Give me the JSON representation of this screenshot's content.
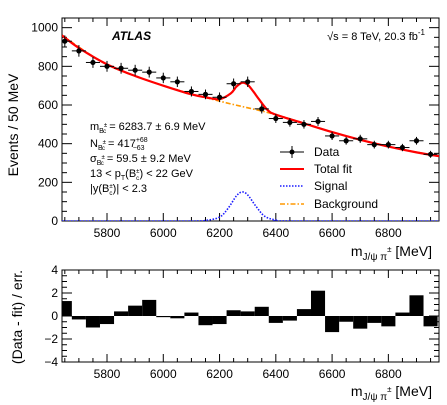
{
  "chart_data": [
    {
      "type": "line",
      "xlabel_main": "m",
      "xlabel_sub": "J/ψ π",
      "xlabel_sup": "±",
      "xlabel_unit": " [MeV]",
      "ylabel": "Events / 50 MeV",
      "xlim": [
        5640,
        6980
      ],
      "ylim": [
        0,
        1050
      ],
      "xticks": [
        5800,
        6000,
        6200,
        6400,
        6600,
        6800
      ],
      "xtick_labels": [
        "5800",
        "6000",
        "6200",
        "6400",
        "6600",
        "6800"
      ],
      "yticks": [
        0,
        200,
        400,
        600,
        800,
        1000
      ],
      "ytick_labels": [
        "0",
        "200",
        "400",
        "600",
        "800",
        "1000"
      ],
      "experiment": "ATLAS",
      "energy_label": "√s = 8 TeV, 20.3 fb",
      "energy_sup": "-1",
      "fit_results": [
        {
          "main": "m",
          "sub": "B",
          "subsup": "±",
          "subsub": "c",
          "rest": " = 6283.7 ± 6.9 MeV"
        },
        {
          "main": "N",
          "sub": "B",
          "subsup": "±",
          "subsub": "c",
          "rest": " = 417",
          "up": "+68",
          "down": "−63"
        },
        {
          "main": "σ",
          "sub": "B",
          "subsup": "±",
          "subsub": "c",
          "rest": " = 59.5 ± 9.2 MeV"
        }
      ],
      "cut_pt": {
        "pre": "13 < p",
        "sub": "T",
        "mid": "(B",
        "sub2": "c",
        "sup2": "±",
        "post": ") < 22 GeV"
      },
      "cut_y": {
        "pre": "|y(B",
        "sub": "c",
        "sup": "±",
        "post": ")| < 2.3"
      },
      "legend": [
        {
          "label": "Data",
          "style": "data"
        },
        {
          "label": "Total fit",
          "style": "total"
        },
        {
          "label": "Signal",
          "style": "signal"
        },
        {
          "label": "Background",
          "style": "background"
        }
      ],
      "colors": {
        "total_fit": "#ff0000",
        "signal": "#1a1aff",
        "background": "#ff9900",
        "data": "#000000"
      },
      "series": [
        {
          "name": "Data",
          "x": [
            5650,
            5700,
            5750,
            5800,
            5850,
            5900,
            5950,
            6000,
            6050,
            6100,
            6150,
            6200,
            6250,
            6300,
            6350,
            6400,
            6450,
            6500,
            6550,
            6600,
            6650,
            6700,
            6750,
            6800,
            6850,
            6900,
            6950
          ],
          "y": [
            930,
            880,
            820,
            800,
            790,
            780,
            770,
            740,
            720,
            670,
            655,
            640,
            710,
            720,
            580,
            530,
            510,
            500,
            515,
            440,
            415,
            425,
            395,
            395,
            380,
            415,
            345
          ],
          "err": [
            30,
            30,
            28,
            28,
            28,
            28,
            28,
            27,
            27,
            26,
            25,
            25,
            27,
            27,
            24,
            23,
            22,
            22,
            23,
            21,
            20,
            21,
            20,
            20,
            19,
            20,
            18
          ]
        },
        {
          "name": "Total fit",
          "x": [
            5640,
            5700,
            5800,
            5900,
            6000,
            6100,
            6150,
            6200,
            6240,
            6260,
            6280,
            6300,
            6320,
            6340,
            6370,
            6400,
            6500,
            6600,
            6700,
            6800,
            6900,
            6980
          ],
          "y": [
            960,
            895,
            810,
            750,
            700,
            655,
            640,
            630,
            660,
            695,
            715,
            705,
            670,
            630,
            575,
            550,
            505,
            460,
            420,
            385,
            355,
            335
          ]
        },
        {
          "name": "Signal",
          "x": [
            5640,
            6100,
            6150,
            6200,
            6230,
            6260,
            6280,
            6300,
            6330,
            6360,
            6400,
            6450,
            6980
          ],
          "y": [
            0,
            0,
            3,
            20,
            65,
            130,
            150,
            135,
            75,
            25,
            5,
            0,
            0
          ]
        },
        {
          "name": "Background",
          "x": [
            5640,
            5800,
            6000,
            6200,
            6400,
            6600,
            6800,
            6980
          ],
          "y": [
            960,
            810,
            700,
            620,
            550,
            460,
            385,
            335
          ]
        }
      ]
    },
    {
      "type": "bar",
      "ylabel": "(Data - fit) / err.",
      "xlabel_main": "m",
      "xlabel_sub": "J/ψ π",
      "xlabel_sup": "±",
      "xlabel_unit": " [MeV]",
      "xlim": [
        5640,
        6980
      ],
      "ylim": [
        -4,
        4
      ],
      "xticks": [
        5800,
        6000,
        6200,
        6400,
        6600,
        6800
      ],
      "xtick_labels": [
        "5800",
        "6000",
        "6200",
        "6400",
        "6600",
        "6800"
      ],
      "yticks": [
        -4,
        -2,
        0,
        2,
        4
      ],
      "ytick_labels": [
        "−4",
        "−2",
        "0",
        "2",
        "4"
      ],
      "bin_width": 50,
      "x": [
        5650,
        5700,
        5750,
        5800,
        5850,
        5900,
        5950,
        6000,
        6050,
        6100,
        6150,
        6200,
        6250,
        6300,
        6350,
        6400,
        6450,
        6500,
        6550,
        6600,
        6650,
        6700,
        6750,
        6800,
        6850,
        6900,
        6950
      ],
      "values": [
        1.3,
        -0.3,
        -1.0,
        -0.7,
        0.4,
        0.9,
        1.4,
        -0.1,
        -0.2,
        0.3,
        -0.8,
        -0.7,
        0.5,
        0.4,
        0.8,
        -0.6,
        -0.4,
        0.6,
        2.2,
        -1.4,
        -0.5,
        -1.1,
        -0.6,
        -0.9,
        0.3,
        1.8,
        -0.9
      ]
    }
  ]
}
